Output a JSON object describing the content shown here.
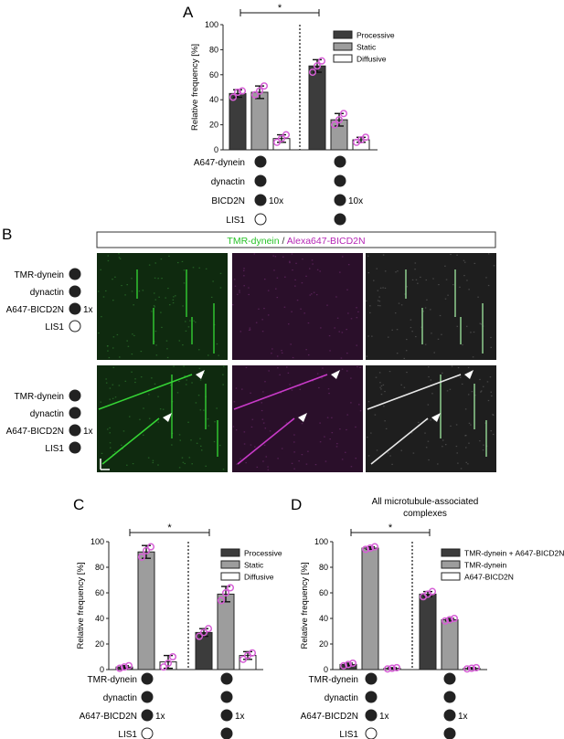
{
  "panels": {
    "A": "A",
    "B": "B",
    "C": "C",
    "D": "D"
  },
  "colors": {
    "processive": "#3c3c3c",
    "static": "#9d9d9d",
    "diffusive": "#ffffff",
    "points": "#d65fd6",
    "green": "#27c227",
    "magenta": "#b626b6"
  },
  "conditions": {
    "labels_A": [
      "A647-dynein",
      "dynactin",
      "BICD2N",
      "LIS1"
    ],
    "labels_B": [
      "TMR-dynein",
      "dynactin",
      "A647-BICD2N",
      "LIS1"
    ],
    "labels_CD": [
      "TMR-dynein",
      "dynactin",
      "A647-BICD2N",
      "LIS1"
    ],
    "fold_A": "10x",
    "fold_B": "1x",
    "fold_CD": "1x"
  },
  "kymograph": {
    "header_green": "TMR-dynein",
    "header_sep": " / ",
    "header_magenta": "Alexa647-BICD2N"
  },
  "chart_data": [
    {
      "id": "A",
      "type": "bar",
      "categories": [
        "-LIS1",
        "+LIS1"
      ],
      "series": [
        {
          "name": "Processive",
          "values": [
            45,
            67
          ],
          "errors": [
            3,
            5
          ]
        },
        {
          "name": "Static",
          "values": [
            46,
            24
          ],
          "errors": [
            5,
            5
          ]
        },
        {
          "name": "Diffusive",
          "values": [
            9,
            8
          ],
          "errors": [
            3,
            2
          ]
        }
      ],
      "points": [
        [
          [
            42,
            46,
            47
          ],
          [
            44,
            47,
            51
          ],
          [
            6,
            9,
            12
          ]
        ],
        [
          [
            62,
            67,
            71
          ],
          [
            20,
            24,
            29
          ],
          [
            6,
            8,
            10
          ]
        ]
      ],
      "ylabel": "Relative frequency [%]",
      "ylim": [
        0,
        100
      ],
      "yticks": [
        0,
        20,
        40,
        60,
        80,
        100
      ],
      "significance": "*",
      "legend_position": "top-right"
    },
    {
      "id": "C",
      "type": "bar",
      "categories": [
        "-LIS1",
        "+LIS1"
      ],
      "series": [
        {
          "name": "Processive",
          "values": [
            2,
            29
          ],
          "errors": [
            1,
            3
          ]
        },
        {
          "name": "Static",
          "values": [
            92,
            59
          ],
          "errors": [
            5,
            6
          ]
        },
        {
          "name": "Diffusive",
          "values": [
            6,
            11
          ],
          "errors": [
            5,
            3
          ]
        }
      ],
      "points": [
        [
          [
            1,
            2,
            3
          ],
          [
            88,
            93,
            96
          ],
          [
            2,
            5,
            10
          ]
        ],
        [
          [
            26,
            29,
            32
          ],
          [
            54,
            60,
            64
          ],
          [
            8,
            11,
            13
          ]
        ]
      ],
      "ylabel": "Relative frequency [%]",
      "ylim": [
        0,
        100
      ],
      "yticks": [
        0,
        20,
        40,
        60,
        80,
        100
      ],
      "significance": "*",
      "legend_position": "top-right"
    },
    {
      "id": "D",
      "type": "bar",
      "title": "All microtubule-associated complexes",
      "categories": [
        "-LIS1",
        "+LIS1"
      ],
      "series": [
        {
          "name": "TMR-dynein + A647-BICD2N",
          "values": [
            4,
            59
          ],
          "errors": [
            1,
            2
          ]
        },
        {
          "name": "TMR-dynein",
          "values": [
            95,
            39
          ],
          "errors": [
            1,
            1
          ]
        },
        {
          "name": "A647-BICD2N",
          "values": [
            1,
            1
          ],
          "errors": [
            0.5,
            0.5
          ]
        }
      ],
      "points": [
        [
          [
            3,
            4,
            5
          ],
          [
            94,
            95,
            96
          ],
          [
            0.5,
            1,
            1.5
          ]
        ],
        [
          [
            57,
            59,
            61
          ],
          [
            38,
            39,
            40
          ],
          [
            0.5,
            1,
            1.5
          ]
        ]
      ],
      "ylabel": "Relative frequency [%]",
      "ylim": [
        0,
        100
      ],
      "yticks": [
        0,
        20,
        40,
        60,
        80,
        100
      ],
      "significance": "*",
      "legend_position": "top-right"
    }
  ]
}
